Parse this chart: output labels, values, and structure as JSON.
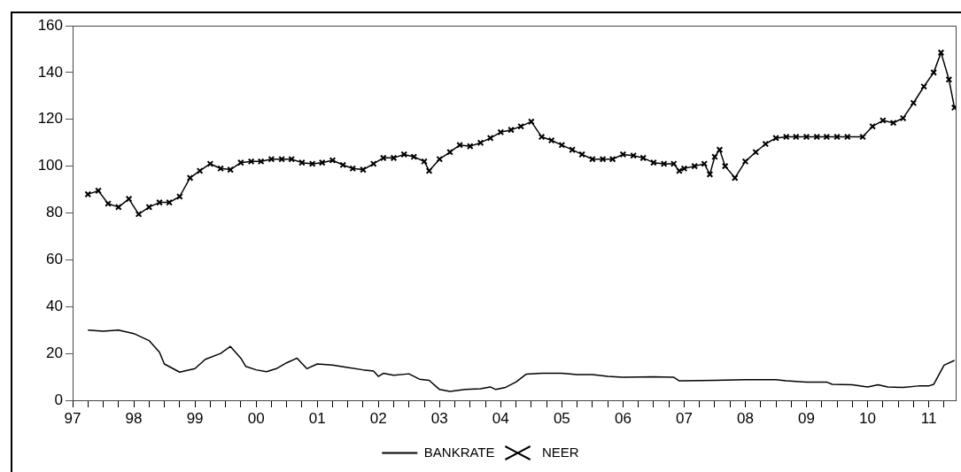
{
  "chart_data": {
    "type": "line",
    "x": [
      1997.25,
      1997.42,
      1997.58,
      1997.75,
      1997.92,
      1998.08,
      1998.25,
      1998.42,
      1998.58,
      1998.75,
      1998.92,
      1999.08,
      1999.25,
      1999.42,
      1999.58,
      1999.75,
      1999.92,
      2000.08,
      2000.25,
      2000.42,
      2000.58,
      2000.75,
      2000.92,
      2001.08,
      2001.25,
      2001.42,
      2001.58,
      2001.75,
      2001.92,
      2002.08,
      2002.25,
      2002.42,
      2002.58,
      2002.75,
      2002.83,
      2003.0,
      2003.17,
      2003.33,
      2003.5,
      2003.67,
      2003.83,
      2004.0,
      2004.17,
      2004.33,
      2004.5,
      2004.67,
      2004.83,
      2005.0,
      2005.17,
      2005.33,
      2005.5,
      2005.67,
      2005.83,
      2006.0,
      2006.17,
      2006.33,
      2006.5,
      2006.67,
      2006.83,
      2006.92,
      2007.0,
      2007.17,
      2007.33,
      2007.42,
      2007.5,
      2007.58,
      2007.67,
      2007.83,
      2008.0,
      2008.17,
      2008.33,
      2008.5,
      2008.67,
      2008.83,
      2009.0,
      2009.17,
      2009.33,
      2009.5,
      2009.67,
      2009.92,
      2010.08,
      2010.25,
      2010.42,
      2010.58,
      2010.75,
      2010.92,
      2011.08,
      2011.2,
      2011.33,
      2011.42
    ],
    "xlim": [
      1997,
      2011.44
    ],
    "xticks": [
      {
        "value": 1997,
        "label": "97"
      },
      {
        "value": 1997.25,
        "label": null
      },
      {
        "value": 1997.5,
        "label": null
      },
      {
        "value": 1997.75,
        "label": null
      },
      {
        "value": 1998,
        "label": "98"
      },
      {
        "value": 1998.25,
        "label": null
      },
      {
        "value": 1998.5,
        "label": null
      },
      {
        "value": 1998.75,
        "label": null
      },
      {
        "value": 1999,
        "label": "99"
      },
      {
        "value": 1999.25,
        "label": null
      },
      {
        "value": 1999.5,
        "label": null
      },
      {
        "value": 1999.75,
        "label": null
      },
      {
        "value": 2000,
        "label": "00"
      },
      {
        "value": 2000.25,
        "label": null
      },
      {
        "value": 2000.5,
        "label": null
      },
      {
        "value": 2000.75,
        "label": null
      },
      {
        "value": 2001,
        "label": "01"
      },
      {
        "value": 2001.25,
        "label": null
      },
      {
        "value": 2001.5,
        "label": null
      },
      {
        "value": 2001.75,
        "label": null
      },
      {
        "value": 2002,
        "label": "02"
      },
      {
        "value": 2002.25,
        "label": null
      },
      {
        "value": 2002.5,
        "label": null
      },
      {
        "value": 2002.75,
        "label": null
      },
      {
        "value": 2003,
        "label": "03"
      },
      {
        "value": 2003.25,
        "label": null
      },
      {
        "value": 2003.5,
        "label": null
      },
      {
        "value": 2003.75,
        "label": null
      },
      {
        "value": 2004,
        "label": "04"
      },
      {
        "value": 2004.25,
        "label": null
      },
      {
        "value": 2004.5,
        "label": null
      },
      {
        "value": 2004.75,
        "label": null
      },
      {
        "value": 2005,
        "label": "05"
      },
      {
        "value": 2005.25,
        "label": null
      },
      {
        "value": 2005.5,
        "label": null
      },
      {
        "value": 2005.75,
        "label": null
      },
      {
        "value": 2006,
        "label": "06"
      },
      {
        "value": 2006.25,
        "label": null
      },
      {
        "value": 2006.5,
        "label": null
      },
      {
        "value": 2006.75,
        "label": null
      },
      {
        "value": 2007,
        "label": "07"
      },
      {
        "value": 2007.25,
        "label": null
      },
      {
        "value": 2007.5,
        "label": null
      },
      {
        "value": 2007.75,
        "label": null
      },
      {
        "value": 2008,
        "label": "08"
      },
      {
        "value": 2008.25,
        "label": null
      },
      {
        "value": 2008.5,
        "label": null
      },
      {
        "value": 2008.75,
        "label": null
      },
      {
        "value": 2009,
        "label": "09"
      },
      {
        "value": 2009.25,
        "label": null
      },
      {
        "value": 2009.5,
        "label": null
      },
      {
        "value": 2009.75,
        "label": null
      },
      {
        "value": 2010,
        "label": "10"
      },
      {
        "value": 2010.25,
        "label": null
      },
      {
        "value": 2010.5,
        "label": null
      },
      {
        "value": 2010.75,
        "label": null
      },
      {
        "value": 2011,
        "label": "11"
      },
      {
        "value": 2011.25,
        "label": null
      }
    ],
    "ylim": [
      0,
      160
    ],
    "yticks": [
      0,
      20,
      40,
      60,
      80,
      100,
      120,
      140,
      160
    ],
    "grid": false,
    "legend": "bottom",
    "line_style": "solid",
    "series": [
      {
        "name": "BANKRATE",
        "color": "#000000",
        "marker": "none",
        "x": [
          1997.25,
          1997.5,
          1997.75,
          1998.0,
          1998.25,
          1998.42,
          1998.5,
          1998.75,
          1999.0,
          1999.17,
          1999.42,
          1999.58,
          1999.75,
          1999.83,
          2000.0,
          2000.17,
          2000.33,
          2000.5,
          2000.67,
          2000.83,
          2001.0,
          2001.25,
          2001.5,
          2001.75,
          2001.92,
          2002.0,
          2002.08,
          2002.25,
          2002.5,
          2002.67,
          2002.83,
          2003.0,
          2003.17,
          2003.42,
          2003.67,
          2003.83,
          2003.92,
          2004.08,
          2004.25,
          2004.42,
          2004.67,
          2005.0,
          2005.25,
          2005.5,
          2005.75,
          2006.0,
          2006.5,
          2006.83,
          2006.92,
          2007.0,
          2007.5,
          2008.0,
          2008.5,
          2008.67,
          2009.0,
          2009.33,
          2009.42,
          2009.75,
          2010.0,
          2010.17,
          2010.33,
          2010.58,
          2010.83,
          2011.0,
          2011.08,
          2011.25,
          2011.42
        ],
        "values": [
          30,
          29.5,
          30,
          28.5,
          25.5,
          20.5,
          15.5,
          12,
          13.5,
          17.5,
          20,
          23,
          18,
          14.5,
          13,
          12.2,
          13.5,
          16,
          18,
          13.5,
          15.5,
          15,
          14,
          13,
          12.5,
          10.2,
          11.5,
          10.7,
          11.3,
          9,
          8.5,
          4.6,
          3.8,
          4.6,
          4.9,
          5.7,
          4.6,
          5.5,
          7.8,
          11.2,
          11.5,
          11.5,
          11,
          11,
          10.2,
          9.8,
          10,
          9.8,
          8.3,
          8.3,
          8.5,
          8.8,
          8.8,
          8.3,
          7.8,
          7.8,
          6.8,
          6.6,
          5.7,
          6.6,
          5.7,
          5.5,
          6.1,
          6.1,
          6.8,
          15,
          17
        ]
      },
      {
        "name": "NEER",
        "color": "#000000",
        "marker": "cross",
        "values": [
          88,
          89.5,
          84,
          82.5,
          86,
          79.5,
          82.5,
          84.5,
          84.5,
          87,
          95,
          98,
          101,
          99,
          98.5,
          101.5,
          102,
          102,
          103,
          103,
          103,
          101.5,
          101,
          101.5,
          102.5,
          100.5,
          99,
          98.5,
          101,
          103.5,
          103.5,
          105,
          104,
          102,
          98,
          103,
          106,
          109,
          108.5,
          110,
          112,
          114.5,
          115.5,
          117,
          119,
          112.5,
          111,
          109,
          107,
          105,
          103,
          103,
          103,
          105,
          104.5,
          103.5,
          101.5,
          101,
          101,
          98,
          99,
          100,
          101,
          96.5,
          104,
          107,
          100,
          95,
          102,
          106,
          109.5,
          112,
          112.5,
          112.5,
          112.5,
          112.5,
          112.5,
          112.5,
          112.5,
          112.5,
          117,
          119.5,
          118.5,
          120.5,
          127,
          134,
          140,
          148.5,
          137,
          125
        ]
      }
    ]
  }
}
